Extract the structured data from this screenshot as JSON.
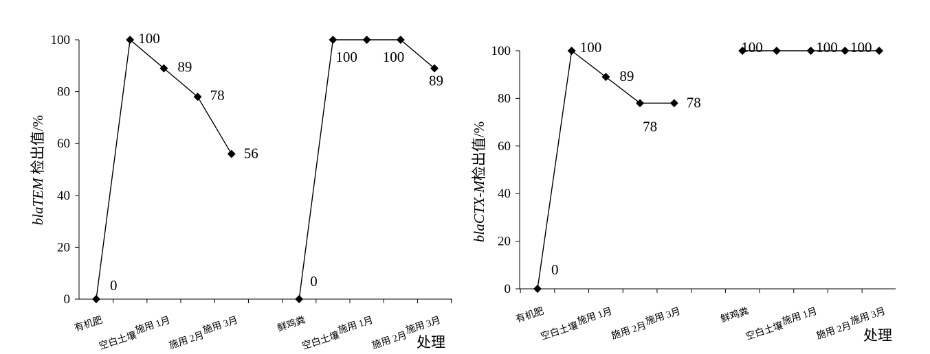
{
  "chart_data": [
    {
      "type": "line",
      "ylabel": "blaTEM 检出值/%",
      "ylabel_italic": "blaTEM",
      "ylabel_plain": " 检出值/%",
      "xlabel": "处理",
      "ylim": [
        0,
        100
      ],
      "yticks": [
        0,
        20,
        40,
        60,
        80,
        100
      ],
      "categories": [
        "有机肥",
        "空白土壤",
        "施用 1月",
        "施用 2月",
        "施用 3月",
        "",
        "鲜鸡粪",
        "空白土壤",
        "施用 1月",
        "施用 2月",
        "施用 3月"
      ],
      "series": [
        {
          "values": [
            0,
            100,
            89,
            78,
            56,
            null,
            null,
            null,
            null,
            null,
            null
          ],
          "labels": [
            "0",
            "100",
            "89",
            "78",
            "56",
            null,
            null,
            null,
            null,
            null,
            null
          ]
        },
        {
          "values": [
            null,
            null,
            null,
            null,
            null,
            null,
            0,
            100,
            100,
            100,
            89
          ],
          "labels": [
            null,
            null,
            null,
            null,
            null,
            null,
            "0",
            "100",
            null,
            "100",
            "89"
          ]
        }
      ],
      "marker": "diamond",
      "color": "#000000",
      "grid": false
    },
    {
      "type": "line",
      "ylabel": "blaCTX-M检出值/%",
      "ylabel_italic": "blaCTX-M",
      "ylabel_plain": "检出值/%",
      "xlabel": "处理",
      "ylim": [
        0,
        100
      ],
      "yticks": [
        0,
        20,
        40,
        60,
        80,
        100
      ],
      "categories": [
        "有机肥",
        "空白土壤",
        "施用 1月",
        "施用 2月",
        "施用 3月",
        "",
        "鲜鸡粪",
        "空白土壤",
        "施用 1月",
        "施用 2月",
        "施用 3月"
      ],
      "series": [
        {
          "values": [
            0,
            100,
            89,
            78,
            78,
            null,
            null,
            null,
            null,
            null,
            null
          ],
          "labels": [
            "0",
            "100",
            "89",
            "78",
            "78",
            null,
            null,
            null,
            null,
            null,
            null
          ]
        },
        {
          "values": [
            null,
            null,
            null,
            null,
            null,
            null,
            100,
            100,
            100,
            100,
            100
          ],
          "labels": [
            null,
            null,
            null,
            null,
            null,
            null,
            "100",
            null,
            null,
            "100",
            "100"
          ]
        }
      ],
      "marker": "diamond",
      "color": "#000000",
      "grid": false
    }
  ]
}
